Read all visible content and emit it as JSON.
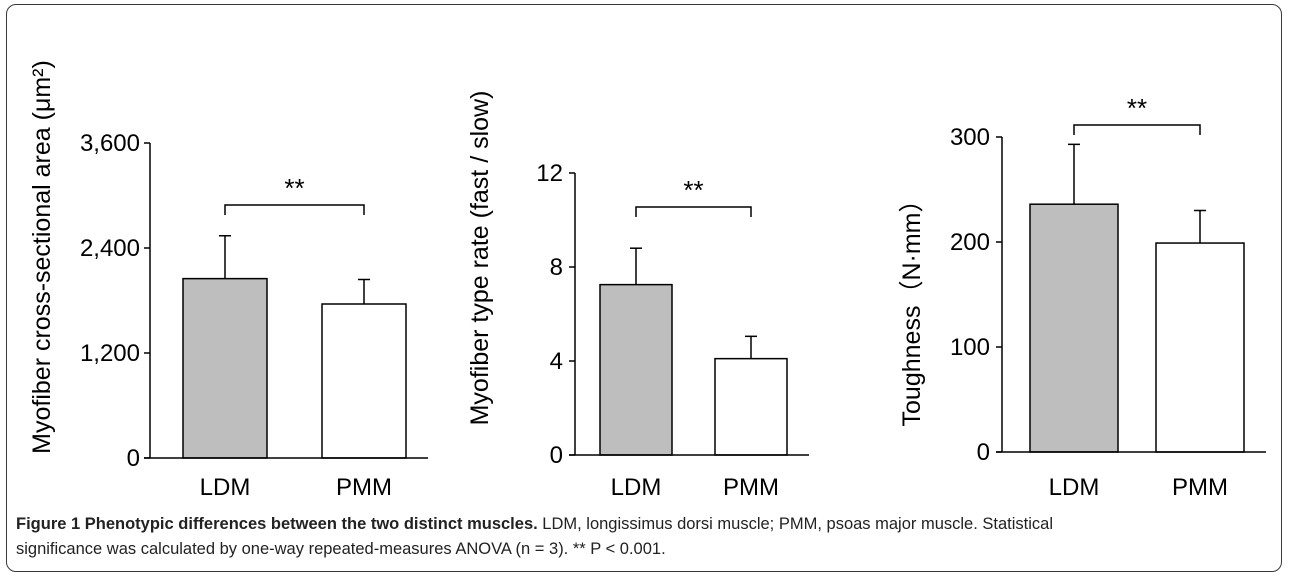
{
  "chart_data": [
    {
      "type": "bar",
      "categories": [
        "LDM",
        "PMM"
      ],
      "values": [
        2050,
        1760
      ],
      "errors": [
        490,
        280
      ],
      "ylabel": "Myofiber cross-sectional area (μm²)",
      "ylim": [
        0,
        3600
      ],
      "yticks": [
        "0",
        "1,200",
        "2,400",
        "3,600"
      ],
      "ytick_values": [
        0,
        1200,
        2400,
        3600
      ],
      "significance": "**",
      "bar_colors": [
        "#bebebe",
        "#ffffff"
      ]
    },
    {
      "type": "bar",
      "categories": [
        "LDM",
        "PMM"
      ],
      "values": [
        7.25,
        4.1
      ],
      "errors": [
        1.55,
        0.95
      ],
      "ylabel": "Myofiber type rate (fast / slow)",
      "ylim": [
        0,
        12
      ],
      "yticks": [
        "0",
        "4",
        "8",
        "12"
      ],
      "ytick_values": [
        0,
        4,
        8,
        12
      ],
      "significance": "**",
      "bar_colors": [
        "#bebebe",
        "#ffffff"
      ]
    },
    {
      "type": "bar",
      "categories": [
        "LDM",
        "PMM"
      ],
      "values": [
        236,
        199
      ],
      "errors": [
        57,
        31
      ],
      "ylabel": "Toughness（N·mm）",
      "ylim": [
        0,
        300
      ],
      "yticks": [
        "0",
        "100",
        "200",
        "300"
      ],
      "ytick_values": [
        0,
        100,
        200,
        300
      ],
      "significance": "**",
      "bar_colors": [
        "#bebebe",
        "#ffffff"
      ]
    }
  ],
  "caption": {
    "title": "Figure 1 Phenotypic differences between the two distinct muscles.",
    "line1_rest": " LDM, longissimus dorsi muscle; PMM, psoas major muscle. Statistical",
    "line2": "significance was calculated by one-way repeated-measures ANOVA (n = 3). ** P < 0.001."
  },
  "colors": {
    "axis": "#000000",
    "bar_ldm": "#bebebe",
    "bar_pmm": "#ffffff",
    "frame": "#3a3a3a"
  }
}
